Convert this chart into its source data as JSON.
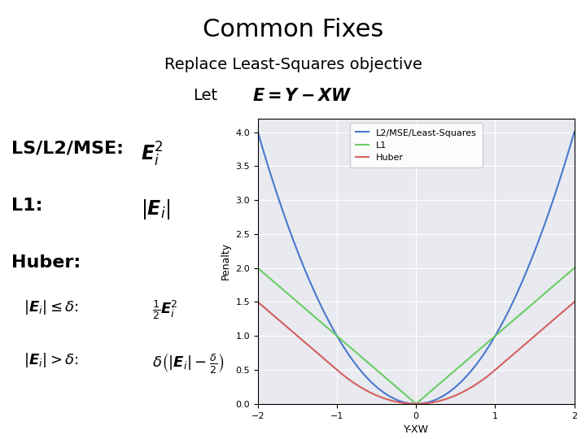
{
  "title": "Common Fixes",
  "subtitle": "Replace Least-Squares objective",
  "let_label": "Let",
  "formula_E": "$\\boldsymbol{E = Y - XW}$",
  "ls_label": "LS/L2/MSE:",
  "ls_formula": "$\\boldsymbol{E}_i^2$",
  "l1_label": "L1:",
  "l1_formula": "$|\\boldsymbol{E}_i|$",
  "huber_label": "Huber:",
  "huber_cond1": "$|\\boldsymbol{E}_i| \\leq \\delta$:",
  "huber_f1": "$\\frac{1}{2}\\boldsymbol{E}_i^2$",
  "huber_cond2": "$|\\boldsymbol{E}_i| > \\delta$:",
  "huber_f2": "$\\delta\\left(|\\boldsymbol{E}_i| - \\frac{\\delta}{2}\\right)$",
  "plot_xlabel": "Y-XW",
  "plot_ylabel": "Penalty",
  "plot_xlim": [
    -2,
    2
  ],
  "plot_ylim": [
    0,
    4.2
  ],
  "delta": 1.0,
  "legend_labels": [
    "L2/MSE/Least-Squares",
    "L1",
    "Huber"
  ],
  "line_colors": [
    "#4878CF",
    "#6ACC65",
    "#D65F5F"
  ],
  "plot_bg_color": "#E8EAF0",
  "bg_color": "#FFFFFF",
  "title_fontsize": 22,
  "subtitle_fontsize": 14,
  "label_fontsize": 16,
  "formula_fontsize": 15,
  "cond_fontsize": 13
}
